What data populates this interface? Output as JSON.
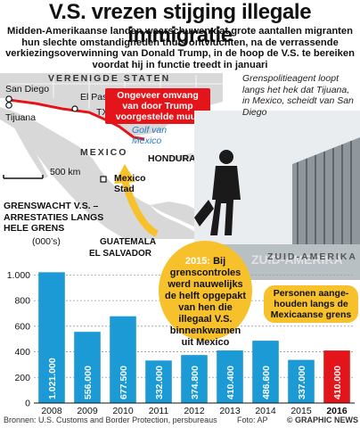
{
  "header": {
    "title": "V.S. vrezen stijging illegale immigratie",
    "subtitle": "Midden-Amerikaanse landen waarschuwen dat grote aantallen migranten hun slechte omstandigheden thuis ontvluchten, na de verrassende verkiezingsoverwinning van Donald Trump, in de hoop de V.S. te bereiken voordat hij in functie treedt in januari"
  },
  "map": {
    "country_us": "VERENIGDE STATEN",
    "country_mexico": "MEXICO",
    "country_honduras": "HONDURAS",
    "country_guatemala": "GUATEMALA",
    "country_elsalvador": "EL SALVADOR",
    "country_southamerica": "ZUID-AMERIKA",
    "city_sandiego": "San Diego",
    "city_tijuana": "Tijuana",
    "city_elpaso": "El Paso",
    "state_tx": "TX",
    "city_mexicostad": "Mexico Stad",
    "sea_gulf": "Golf van Mexico",
    "scale": "500 km",
    "wall_callout": "Ongeveer omvang van door Trump voorgestelde muur",
    "photo_caption": "Grenspolitieagent loopt langs het hek dat Tijuana, in Mexico, scheidt van San Diego"
  },
  "colors": {
    "bar": "#1b9ad6",
    "bar_highlight": "#e3151a",
    "accent": "#f7c12c",
    "land": "#d9d9d9",
    "water": "#ffffff",
    "wall": "#e3151a",
    "title": "#111111"
  },
  "annotations": {
    "bubble_year": "2015:",
    "bubble_text": "Bij grenscontroles werd nauwelijks de helft opgepakt van hen die illegaal V.S. binnenkwamen uit Mexico",
    "people_text": "Personen aange-houden langs de Mexicaanse grens"
  },
  "footer": {
    "source": "Bronnen: U.S. Customs and Border Protection, persbureaus",
    "photo_credit": "Foto: AP",
    "brand": "© GRAPHIC NEWS"
  },
  "chart_data": {
    "type": "bar",
    "title": "GRENSWACHT V.S. – ARRESTATIES LANGS HELE GRENS",
    "unit": "(000’s)",
    "categories": [
      "2008",
      "2009",
      "2010",
      "2011",
      "2012",
      "2013",
      "2014",
      "2015",
      "2016"
    ],
    "values": [
      1021.0,
      556.0,
      677.5,
      332.0,
      374.8,
      410.4,
      486.6,
      337.0,
      410.0
    ],
    "value_labels": [
      "1.021.000",
      "556.000",
      "677.500",
      "332.000",
      "374.800",
      "410.400",
      "486.600",
      "337.000",
      "410.000"
    ],
    "y_ticks": [
      0,
      200,
      400,
      600,
      800,
      1000
    ],
    "y_tick_labels": [
      "0",
      "200",
      "400",
      "600",
      "800",
      "1.000"
    ],
    "ylim": [
      0,
      1100
    ],
    "highlight_category": "2016",
    "grid": true
  }
}
